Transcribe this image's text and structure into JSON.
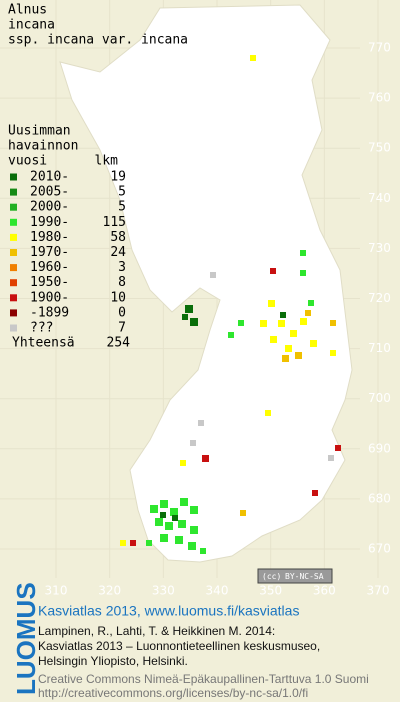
{
  "title": [
    "Alnus",
    "incana",
    "ssp. incana var. incana"
  ],
  "legend": {
    "header": [
      "Uusimman",
      "havainnon",
      "vuosi"
    ],
    "count_header": "lkm",
    "rows": [
      {
        "label": "2010-",
        "count": "19",
        "color": "#0a6e0a"
      },
      {
        "label": "2005-",
        "count": "5",
        "color": "#168a16"
      },
      {
        "label": "2000-",
        "count": "5",
        "color": "#22b022"
      },
      {
        "label": "1990-",
        "count": "115",
        "color": "#2ee62e"
      },
      {
        "label": "1980-",
        "count": "58",
        "color": "#ffff00"
      },
      {
        "label": "1970-",
        "count": "24",
        "color": "#f0c000"
      },
      {
        "label": "1960-",
        "count": "3",
        "color": "#f08000"
      },
      {
        "label": "1950-",
        "count": "8",
        "color": "#e04000"
      },
      {
        "label": "1900-",
        "count": "10",
        "color": "#c81010"
      },
      {
        "label": "-1899",
        "count": "0",
        "color": "#8a0000"
      },
      {
        "label": "???",
        "count": "7",
        "color": "#c8c8c8"
      }
    ],
    "total_label": "Yhteensä",
    "total": "254"
  },
  "map": {
    "yticks": [
      770,
      760,
      750,
      740,
      730,
      720,
      710,
      700,
      690,
      680,
      670
    ],
    "xticks": [
      310,
      320,
      330,
      340,
      350,
      360,
      370
    ],
    "ylim": [
      770,
      670
    ],
    "xlim": [
      310,
      370
    ]
  },
  "badge": {
    "cc": "(cc)",
    "text": "BY-NC-SA"
  },
  "footer": {
    "logo": "LUOMUS",
    "headline": "Kasviatlas 2013, www.luomus.fi/kasviatlas",
    "citation": [
      "Lampinen, R., Lahti, T. & Heikkinen M. 2014:",
      "Kasviatlas 2013 – Luonnontieteellinen keskusmuseo,",
      "Helsingin Yliopisto, Helsinki."
    ],
    "license": [
      "Creative Commons Nimeä-Epäkaupallinen-Tarttuva 1.0 Suomi",
      "http://creativecommons.org/licenses/by-nc-sa/1.0/fi"
    ]
  }
}
